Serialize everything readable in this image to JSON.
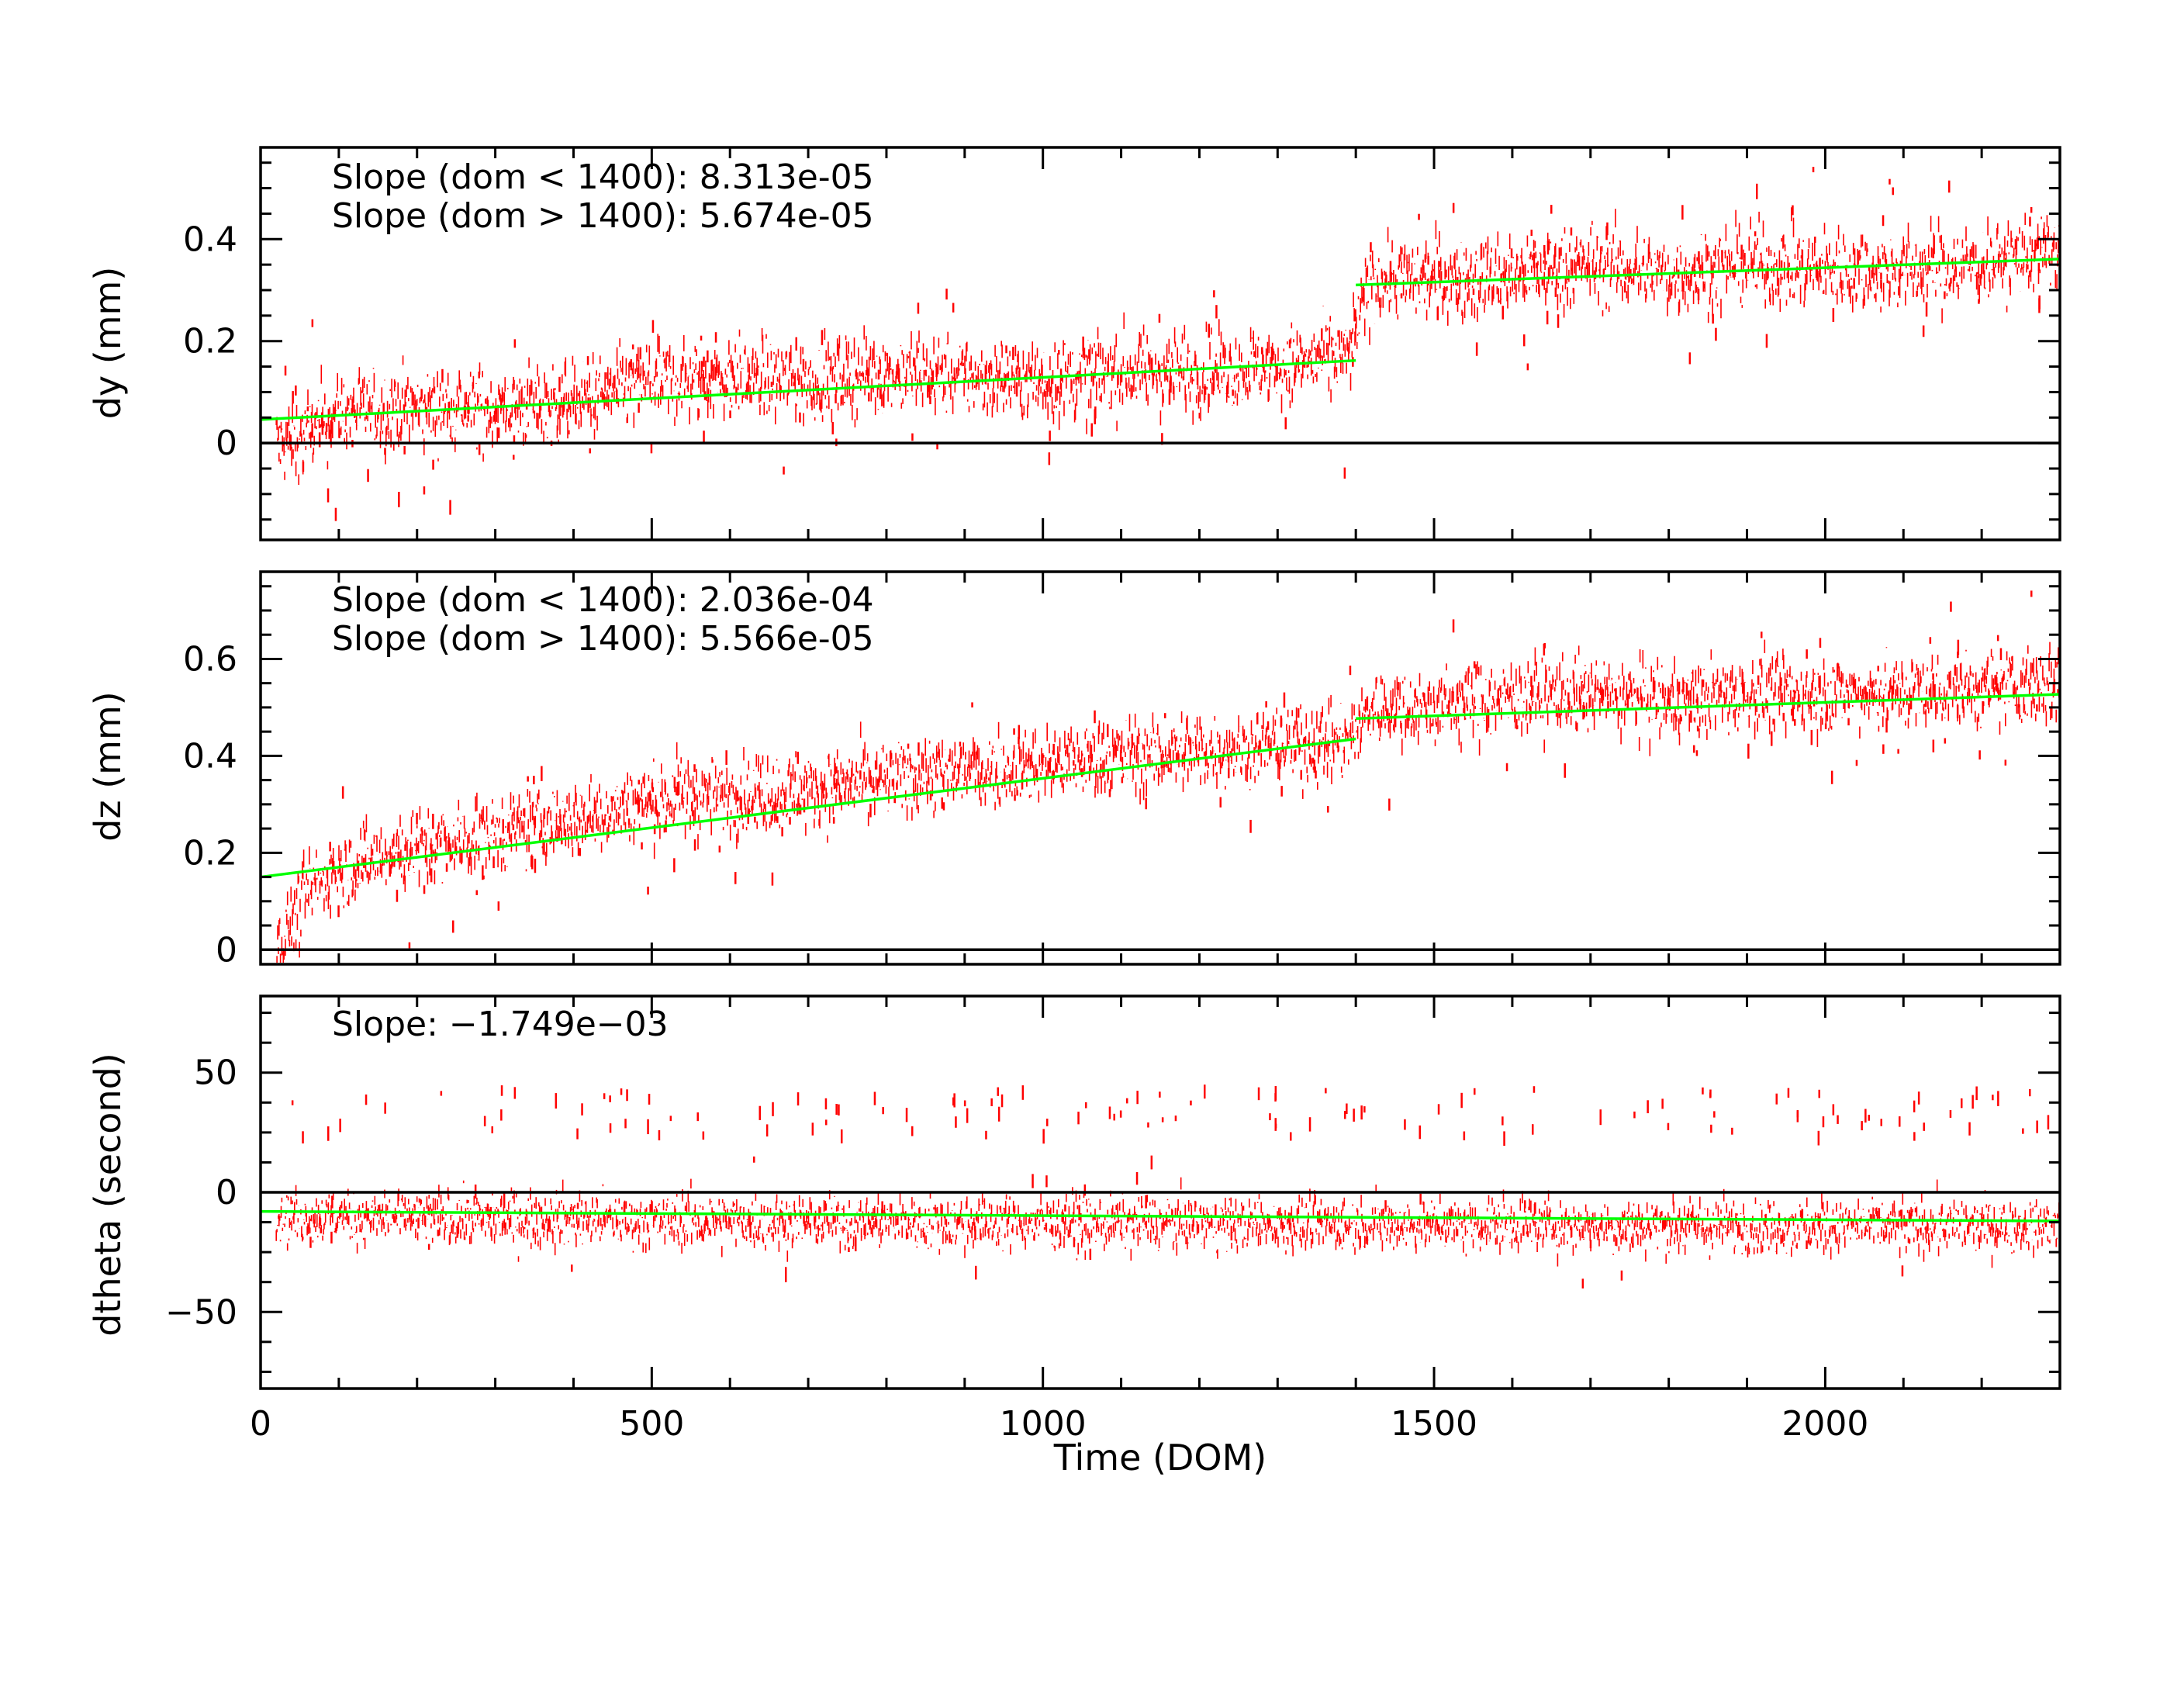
{
  "colors": {
    "data": "#ff0000",
    "fit": "#00ff00",
    "axes": "#000000",
    "background": "#ffffff"
  },
  "chart_data": [
    {
      "type": "scatter",
      "id": "dy",
      "ylabel": "dy (mm)",
      "xlim": [
        0,
        2300
      ],
      "ylim": [
        -0.19,
        0.58
      ],
      "yticks": [
        0,
        0.2,
        0.4
      ],
      "ytick_labels": [
        "0",
        "0.2",
        "0.4"
      ],
      "zero_line": true,
      "annotations": [
        "Slope (dom < 1400): 8.313e-05",
        "Slope (dom > 1400): 5.674e-05"
      ],
      "fit_segments": [
        {
          "x": [
            0,
            1400
          ],
          "y": [
            0.046,
            0.162
          ]
        },
        {
          "x": [
            1400,
            2300
          ],
          "y": [
            0.31,
            0.361
          ]
        }
      ],
      "trend": [
        [
          0,
          0.0
        ],
        [
          40,
          0.0
        ],
        [
          100,
          0.06
        ],
        [
          200,
          0.07
        ],
        [
          300,
          0.07
        ],
        [
          400,
          0.08
        ],
        [
          500,
          0.12
        ],
        [
          600,
          0.13
        ],
        [
          700,
          0.12
        ],
        [
          800,
          0.14
        ],
        [
          900,
          0.13
        ],
        [
          1000,
          0.12
        ],
        [
          1100,
          0.14
        ],
        [
          1200,
          0.14
        ],
        [
          1300,
          0.15
        ],
        [
          1390,
          0.17
        ],
        [
          1420,
          0.32
        ],
        [
          1500,
          0.32
        ],
        [
          1600,
          0.33
        ],
        [
          1700,
          0.35
        ],
        [
          1800,
          0.33
        ],
        [
          1900,
          0.35
        ],
        [
          2000,
          0.34
        ],
        [
          2100,
          0.34
        ],
        [
          2200,
          0.35
        ],
        [
          2300,
          0.38
        ]
      ],
      "scatter_sigma": 0.035
    },
    {
      "type": "scatter",
      "id": "dz",
      "ylabel": "dz (mm)",
      "xlim": [
        0,
        2300
      ],
      "ylim": [
        -0.03,
        0.78
      ],
      "yticks": [
        0,
        0.2,
        0.4,
        0.6
      ],
      "ytick_labels": [
        "0",
        "0.2",
        "0.4",
        "0.6"
      ],
      "zero_line": true,
      "annotations": [
        "Slope (dom < 1400): 2.036e-04",
        "Slope (dom > 1400): 5.566e-05"
      ],
      "fit_segments": [
        {
          "x": [
            0,
            1400
          ],
          "y": [
            0.15,
            0.435
          ]
        },
        {
          "x": [
            1400,
            2300
          ],
          "y": [
            0.477,
            0.527
          ]
        }
      ],
      "trend": [
        [
          20,
          0.0
        ],
        [
          60,
          0.12
        ],
        [
          100,
          0.17
        ],
        [
          200,
          0.21
        ],
        [
          300,
          0.24
        ],
        [
          400,
          0.27
        ],
        [
          500,
          0.31
        ],
        [
          600,
          0.32
        ],
        [
          700,
          0.33
        ],
        [
          800,
          0.35
        ],
        [
          900,
          0.37
        ],
        [
          1000,
          0.38
        ],
        [
          1100,
          0.4
        ],
        [
          1200,
          0.41
        ],
        [
          1300,
          0.42
        ],
        [
          1390,
          0.43
        ],
        [
          1420,
          0.5
        ],
        [
          1500,
          0.5
        ],
        [
          1600,
          0.52
        ],
        [
          1700,
          0.53
        ],
        [
          1800,
          0.51
        ],
        [
          1900,
          0.53
        ],
        [
          2000,
          0.53
        ],
        [
          2100,
          0.53
        ],
        [
          2200,
          0.54
        ],
        [
          2300,
          0.55
        ]
      ],
      "scatter_sigma": 0.035
    },
    {
      "type": "scatter",
      "id": "dtheta",
      "ylabel": "dtheta (second)",
      "xlabel": "Time (DOM)",
      "xlim": [
        0,
        2300
      ],
      "ylim": [
        -82,
        82
      ],
      "yticks": [
        -50,
        0,
        50
      ],
      "ytick_labels": [
        "−50",
        "0",
        "50"
      ],
      "xticks": [
        0,
        500,
        1000,
        1500,
        2000
      ],
      "xtick_labels": [
        "0",
        "500",
        "1000",
        "1500",
        "2000"
      ],
      "zero_line": true,
      "annotations": [
        "Slope: −1.749e−03"
      ],
      "fit_segments": [
        {
          "x": [
            0,
            2300
          ],
          "y": [
            -8.0,
            -12.0
          ]
        }
      ],
      "trend": [
        [
          0,
          -10
        ],
        [
          600,
          -12
        ],
        [
          1200,
          -13
        ],
        [
          1800,
          -14
        ],
        [
          2300,
          -14
        ]
      ],
      "scatter_sigma": 5,
      "outlier_band": [
        25,
        45
      ]
    }
  ]
}
